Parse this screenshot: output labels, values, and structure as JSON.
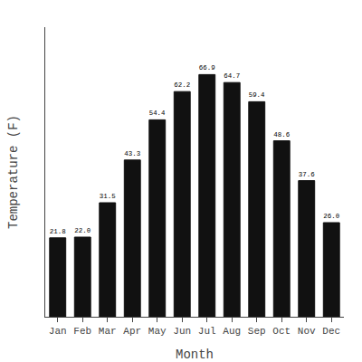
{
  "chart_data": {
    "type": "bar",
    "categories": [
      "Jan",
      "Feb",
      "Mar",
      "Apr",
      "May",
      "Jun",
      "Jul",
      "Aug",
      "Sep",
      "Oct",
      "Nov",
      "Dec"
    ],
    "values": [
      21.8,
      22.0,
      31.5,
      43.3,
      54.4,
      62.2,
      66.9,
      64.7,
      59.4,
      48.6,
      37.6,
      26.0
    ],
    "value_labels": [
      "21.8",
      "22.0",
      "31.5",
      "43.3",
      "54.4",
      "62.2",
      "66.9",
      "64.7",
      "59.4",
      "48.6",
      "37.6",
      "26.0"
    ],
    "color": "#111111",
    "xlabel": "Month",
    "ylabel": "Temperature (F)",
    "ylim": [
      0,
      80
    ],
    "data_labels": true,
    "tick_labels": "x",
    "grid": false
  }
}
